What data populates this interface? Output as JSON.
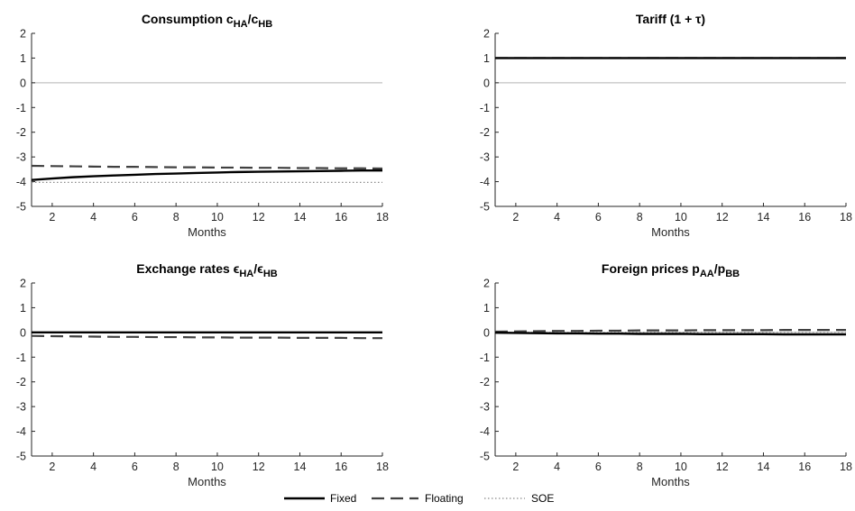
{
  "legend": {
    "position": "bottom-center",
    "entries": [
      {
        "label": "Fixed",
        "style": "solid"
      },
      {
        "label": "Floating",
        "style": "dashed"
      },
      {
        "label": "SOE",
        "style": "dotted"
      }
    ]
  },
  "colors": {
    "fixed": "#000000",
    "floating": "#404040",
    "soe": "#8a8a8a",
    "zero_line": "#b3b3b3",
    "axis": "#262626"
  },
  "chart_data": [
    {
      "type": "line",
      "title": {
        "text": "Consumption c",
        "sub1": "HA",
        "mid": "/c",
        "sub2": "HB"
      },
      "xlabel": "Months",
      "ylabel": "",
      "xlim": [
        1,
        18
      ],
      "ylim": [
        -5,
        2
      ],
      "xticks": [
        2,
        4,
        6,
        8,
        10,
        12,
        14,
        16,
        18
      ],
      "yticks": [
        -5,
        -4,
        -3,
        -2,
        -1,
        0,
        1,
        2
      ],
      "zero_line": true,
      "grid": false,
      "x": [
        1,
        2,
        3,
        4,
        5,
        6,
        7,
        8,
        9,
        10,
        11,
        12,
        13,
        14,
        15,
        16,
        17,
        18
      ],
      "series": [
        {
          "name": "Fixed",
          "values": [
            -3.93,
            -3.87,
            -3.82,
            -3.78,
            -3.75,
            -3.72,
            -3.69,
            -3.67,
            -3.65,
            -3.63,
            -3.61,
            -3.6,
            -3.59,
            -3.58,
            -3.57,
            -3.56,
            -3.55,
            -3.55
          ]
        },
        {
          "name": "Floating",
          "values": [
            -3.36,
            -3.37,
            -3.38,
            -3.39,
            -3.4,
            -3.4,
            -3.41,
            -3.42,
            -3.42,
            -3.43,
            -3.43,
            -3.44,
            -3.44,
            -3.45,
            -3.45,
            -3.46,
            -3.46,
            -3.47
          ]
        },
        {
          "name": "SOE",
          "values": [
            -4.03,
            -4.03,
            -4.03,
            -4.03,
            -4.03,
            -4.03,
            -4.03,
            -4.03,
            -4.03,
            -4.03,
            -4.03,
            -4.03,
            -4.03,
            -4.03,
            -4.03,
            -4.03,
            -4.03,
            -4.03
          ]
        }
      ]
    },
    {
      "type": "line",
      "title": {
        "text": "Tariff (1 + τ)",
        "sub1": "",
        "mid": "",
        "sub2": ""
      },
      "xlabel": "Months",
      "ylabel": "",
      "xlim": [
        1,
        18
      ],
      "ylim": [
        -5,
        2
      ],
      "xticks": [
        2,
        4,
        6,
        8,
        10,
        12,
        14,
        16,
        18
      ],
      "yticks": [
        -5,
        -4,
        -3,
        -2,
        -1,
        0,
        1,
        2
      ],
      "zero_line": true,
      "grid": false,
      "x": [
        1,
        2,
        3,
        4,
        5,
        6,
        7,
        8,
        9,
        10,
        11,
        12,
        13,
        14,
        15,
        16,
        17,
        18
      ],
      "series": [
        {
          "name": "Fixed",
          "values": [
            1,
            1,
            1,
            1,
            1,
            1,
            1,
            1,
            1,
            1,
            1,
            1,
            1,
            1,
            1,
            1,
            1,
            1
          ]
        },
        {
          "name": "Floating",
          "values": [
            1,
            1,
            1,
            1,
            1,
            1,
            1,
            1,
            1,
            1,
            1,
            1,
            1,
            1,
            1,
            1,
            1,
            1
          ]
        },
        {
          "name": "SOE",
          "values": [
            1,
            1,
            1,
            1,
            1,
            1,
            1,
            1,
            1,
            1,
            1,
            1,
            1,
            1,
            1,
            1,
            1,
            1
          ]
        }
      ]
    },
    {
      "type": "line",
      "title": {
        "text": "Exchange rates ϵ",
        "sub1": "HA",
        "mid": "/ϵ",
        "sub2": "HB"
      },
      "xlabel": "Months",
      "ylabel": "",
      "xlim": [
        1,
        18
      ],
      "ylim": [
        -5,
        2
      ],
      "xticks": [
        2,
        4,
        6,
        8,
        10,
        12,
        14,
        16,
        18
      ],
      "yticks": [
        -5,
        -4,
        -3,
        -2,
        -1,
        0,
        1,
        2
      ],
      "zero_line": true,
      "grid": false,
      "x": [
        1,
        2,
        3,
        4,
        5,
        6,
        7,
        8,
        9,
        10,
        11,
        12,
        13,
        14,
        15,
        16,
        17,
        18
      ],
      "series": [
        {
          "name": "Fixed",
          "values": [
            0,
            0,
            0,
            0,
            0,
            0,
            0,
            0,
            0,
            0,
            0,
            0,
            0,
            0,
            0,
            0,
            0,
            0
          ]
        },
        {
          "name": "Floating",
          "values": [
            -0.14,
            -0.15,
            -0.16,
            -0.17,
            -0.18,
            -0.18,
            -0.19,
            -0.19,
            -0.2,
            -0.2,
            -0.21,
            -0.21,
            -0.21,
            -0.22,
            -0.22,
            -0.22,
            -0.23,
            -0.23
          ]
        },
        {
          "name": "SOE",
          "values": [
            -0.02,
            -0.02,
            -0.02,
            -0.02,
            -0.02,
            -0.02,
            -0.02,
            -0.02,
            -0.02,
            -0.02,
            -0.02,
            -0.02,
            -0.02,
            -0.02,
            -0.02,
            -0.02,
            -0.02,
            -0.02
          ]
        }
      ]
    },
    {
      "type": "line",
      "title": {
        "text": "Foreign prices p",
        "sub1": "AA",
        "mid": "/p",
        "sub2": "BB"
      },
      "xlabel": "Months",
      "ylabel": "",
      "xlim": [
        1,
        18
      ],
      "ylim": [
        -5,
        2
      ],
      "xticks": [
        2,
        4,
        6,
        8,
        10,
        12,
        14,
        16,
        18
      ],
      "yticks": [
        -5,
        -4,
        -3,
        -2,
        -1,
        0,
        1,
        2
      ],
      "zero_line": true,
      "grid": false,
      "x": [
        1,
        2,
        3,
        4,
        5,
        6,
        7,
        8,
        9,
        10,
        11,
        12,
        13,
        14,
        15,
        16,
        17,
        18
      ],
      "series": [
        {
          "name": "Fixed",
          "values": [
            -0.01,
            -0.02,
            -0.03,
            -0.04,
            -0.04,
            -0.05,
            -0.05,
            -0.06,
            -0.06,
            -0.06,
            -0.07,
            -0.07,
            -0.07,
            -0.07,
            -0.08,
            -0.08,
            -0.08,
            -0.08
          ]
        },
        {
          "name": "Floating",
          "values": [
            0.03,
            0.04,
            0.05,
            0.06,
            0.06,
            0.07,
            0.07,
            0.08,
            0.08,
            0.08,
            0.09,
            0.09,
            0.09,
            0.09,
            0.1,
            0.1,
            0.1,
            0.1
          ]
        },
        {
          "name": "SOE",
          "values": [
            0,
            0,
            0,
            0,
            0,
            0,
            0,
            0,
            0,
            0,
            0,
            0,
            0,
            0,
            0,
            0,
            0,
            0
          ]
        }
      ]
    }
  ]
}
